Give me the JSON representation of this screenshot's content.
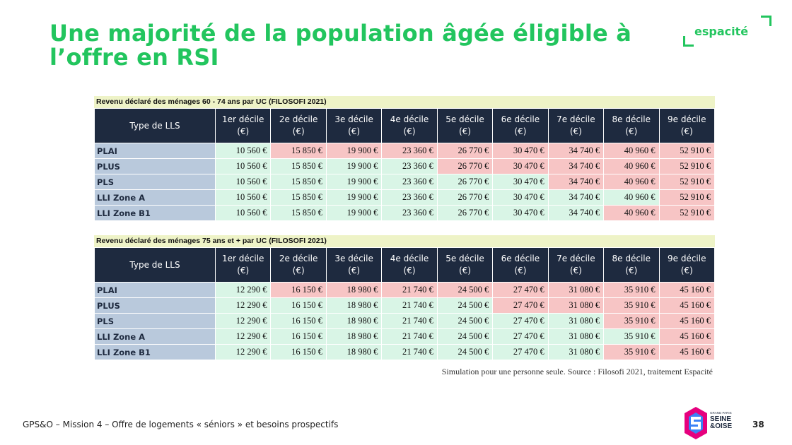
{
  "title": {
    "line1": "Une majorité de la population âgée éligible à",
    "line2": "l’offre en RSI"
  },
  "logo": {
    "text": "espacité"
  },
  "colors": {
    "accent": "#22c55e",
    "header": "#1e2a3f",
    "row_label": "#b9c9dc",
    "eligible": "#d9f5e6",
    "not_eligible": "#f7c5c5",
    "caption_bg": "#eef3c7"
  },
  "tables": [
    {
      "caption": "Revenu déclaré des ménages 60 - 74 ans par UC (FILOSOFI 2021)",
      "header_first": "Type de LLS",
      "headers": [
        [
          "1er décile",
          "(€)"
        ],
        [
          "2e décile",
          "(€)"
        ],
        [
          "3e décile",
          "(€)"
        ],
        [
          "4e décile",
          "(€)"
        ],
        [
          "5e décile",
          "(€)"
        ],
        [
          "6e décile",
          "(€)"
        ],
        [
          "7e décile",
          "(€)"
        ],
        [
          "8e décile",
          "(€)"
        ],
        [
          "9e décile",
          "(€)"
        ]
      ],
      "rows": [
        {
          "label": "PLAI",
          "values": [
            "10 560 €",
            "15 850 €",
            "19 900 €",
            "23 360 €",
            "26 770 €",
            "30 470 €",
            "34 740 €",
            "40 960 €",
            "52 910 €"
          ],
          "status": [
            "g",
            "r",
            "r",
            "r",
            "r",
            "r",
            "r",
            "r",
            "r"
          ]
        },
        {
          "label": "PLUS",
          "values": [
            "10 560 €",
            "15 850 €",
            "19 900 €",
            "23 360 €",
            "26 770 €",
            "30 470 €",
            "34 740 €",
            "40 960 €",
            "52 910 €"
          ],
          "status": [
            "g",
            "g",
            "g",
            "g",
            "r",
            "r",
            "r",
            "r",
            "r"
          ]
        },
        {
          "label": "PLS",
          "values": [
            "10 560 €",
            "15 850 €",
            "19 900 €",
            "23 360 €",
            "26 770 €",
            "30 470 €",
            "34 740 €",
            "40 960 €",
            "52 910 €"
          ],
          "status": [
            "g",
            "g",
            "g",
            "g",
            "g",
            "g",
            "r",
            "r",
            "r"
          ]
        },
        {
          "label": "LLI Zone A",
          "values": [
            "10 560 €",
            "15 850 €",
            "19 900 €",
            "23 360 €",
            "26 770 €",
            "30 470 €",
            "34 740 €",
            "40 960 €",
            "52 910 €"
          ],
          "status": [
            "g",
            "g",
            "g",
            "g",
            "g",
            "g",
            "g",
            "g",
            "r"
          ]
        },
        {
          "label": "LLI Zone B1",
          "values": [
            "10 560 €",
            "15 850 €",
            "19 900 €",
            "23 360 €",
            "26 770 €",
            "30 470 €",
            "34 740 €",
            "40 960 €",
            "52 910 €"
          ],
          "status": [
            "g",
            "g",
            "g",
            "g",
            "g",
            "g",
            "g",
            "r",
            "r"
          ]
        }
      ]
    },
    {
      "caption": "Revenu déclaré des ménages 75 ans et + par UC (FILOSOFI 2021)",
      "header_first": "Type de LLS",
      "headers": [
        [
          "1er décile",
          "(€)"
        ],
        [
          "2e décile",
          "(€)"
        ],
        [
          "3e décile",
          "(€)"
        ],
        [
          "4e décile",
          "(€)"
        ],
        [
          "5e décile",
          "(€)"
        ],
        [
          "6e décile",
          "(€)"
        ],
        [
          "7e décile",
          "(€)"
        ],
        [
          "8e décile",
          "(€)"
        ],
        [
          "9e décile",
          "(€)"
        ]
      ],
      "rows": [
        {
          "label": "PLAI",
          "values": [
            "12 290 €",
            "16 150 €",
            "18 980 €",
            "21 740 €",
            "24 500 €",
            "27 470 €",
            "31 080 €",
            "35 910 €",
            "45 160 €"
          ],
          "status": [
            "g",
            "r",
            "r",
            "r",
            "r",
            "r",
            "r",
            "r",
            "r"
          ]
        },
        {
          "label": "PLUS",
          "values": [
            "12 290 €",
            "16 150 €",
            "18 980 €",
            "21 740 €",
            "24 500 €",
            "27 470 €",
            "31 080 €",
            "35 910 €",
            "45 160 €"
          ],
          "status": [
            "g",
            "g",
            "g",
            "g",
            "g",
            "r",
            "r",
            "r",
            "r"
          ]
        },
        {
          "label": "PLS",
          "values": [
            "12 290 €",
            "16 150 €",
            "18 980 €",
            "21 740 €",
            "24 500 €",
            "27 470 €",
            "31 080 €",
            "35 910 €",
            "45 160 €"
          ],
          "status": [
            "g",
            "g",
            "g",
            "g",
            "g",
            "g",
            "g",
            "r",
            "r"
          ]
        },
        {
          "label": "LLI Zone A",
          "values": [
            "12 290 €",
            "16 150 €",
            "18 980 €",
            "21 740 €",
            "24 500 €",
            "27 470 €",
            "31 080 €",
            "35 910 €",
            "45 160 €"
          ],
          "status": [
            "g",
            "g",
            "g",
            "g",
            "g",
            "g",
            "g",
            "g",
            "r"
          ]
        },
        {
          "label": "LLI Zone B1",
          "values": [
            "12 290 €",
            "16 150 €",
            "18 980 €",
            "21 740 €",
            "24 500 €",
            "27 470 €",
            "31 080 €",
            "35 910 €",
            "45 160 €"
          ],
          "status": [
            "g",
            "g",
            "g",
            "g",
            "g",
            "g",
            "g",
            "r",
            "r"
          ]
        }
      ]
    }
  ],
  "source": "Simulation pour une personne seule. Source : Filosofi 2021, traitement Espacité",
  "footer": {
    "text": "GPS&O – Mission 4 – Offre de logements « séniors » et besoins prospectifs",
    "page_number": "38"
  },
  "partner_logo": {
    "line1": "GRAND PARIS",
    "line2": "SEINE",
    "line3": "&OISE"
  }
}
